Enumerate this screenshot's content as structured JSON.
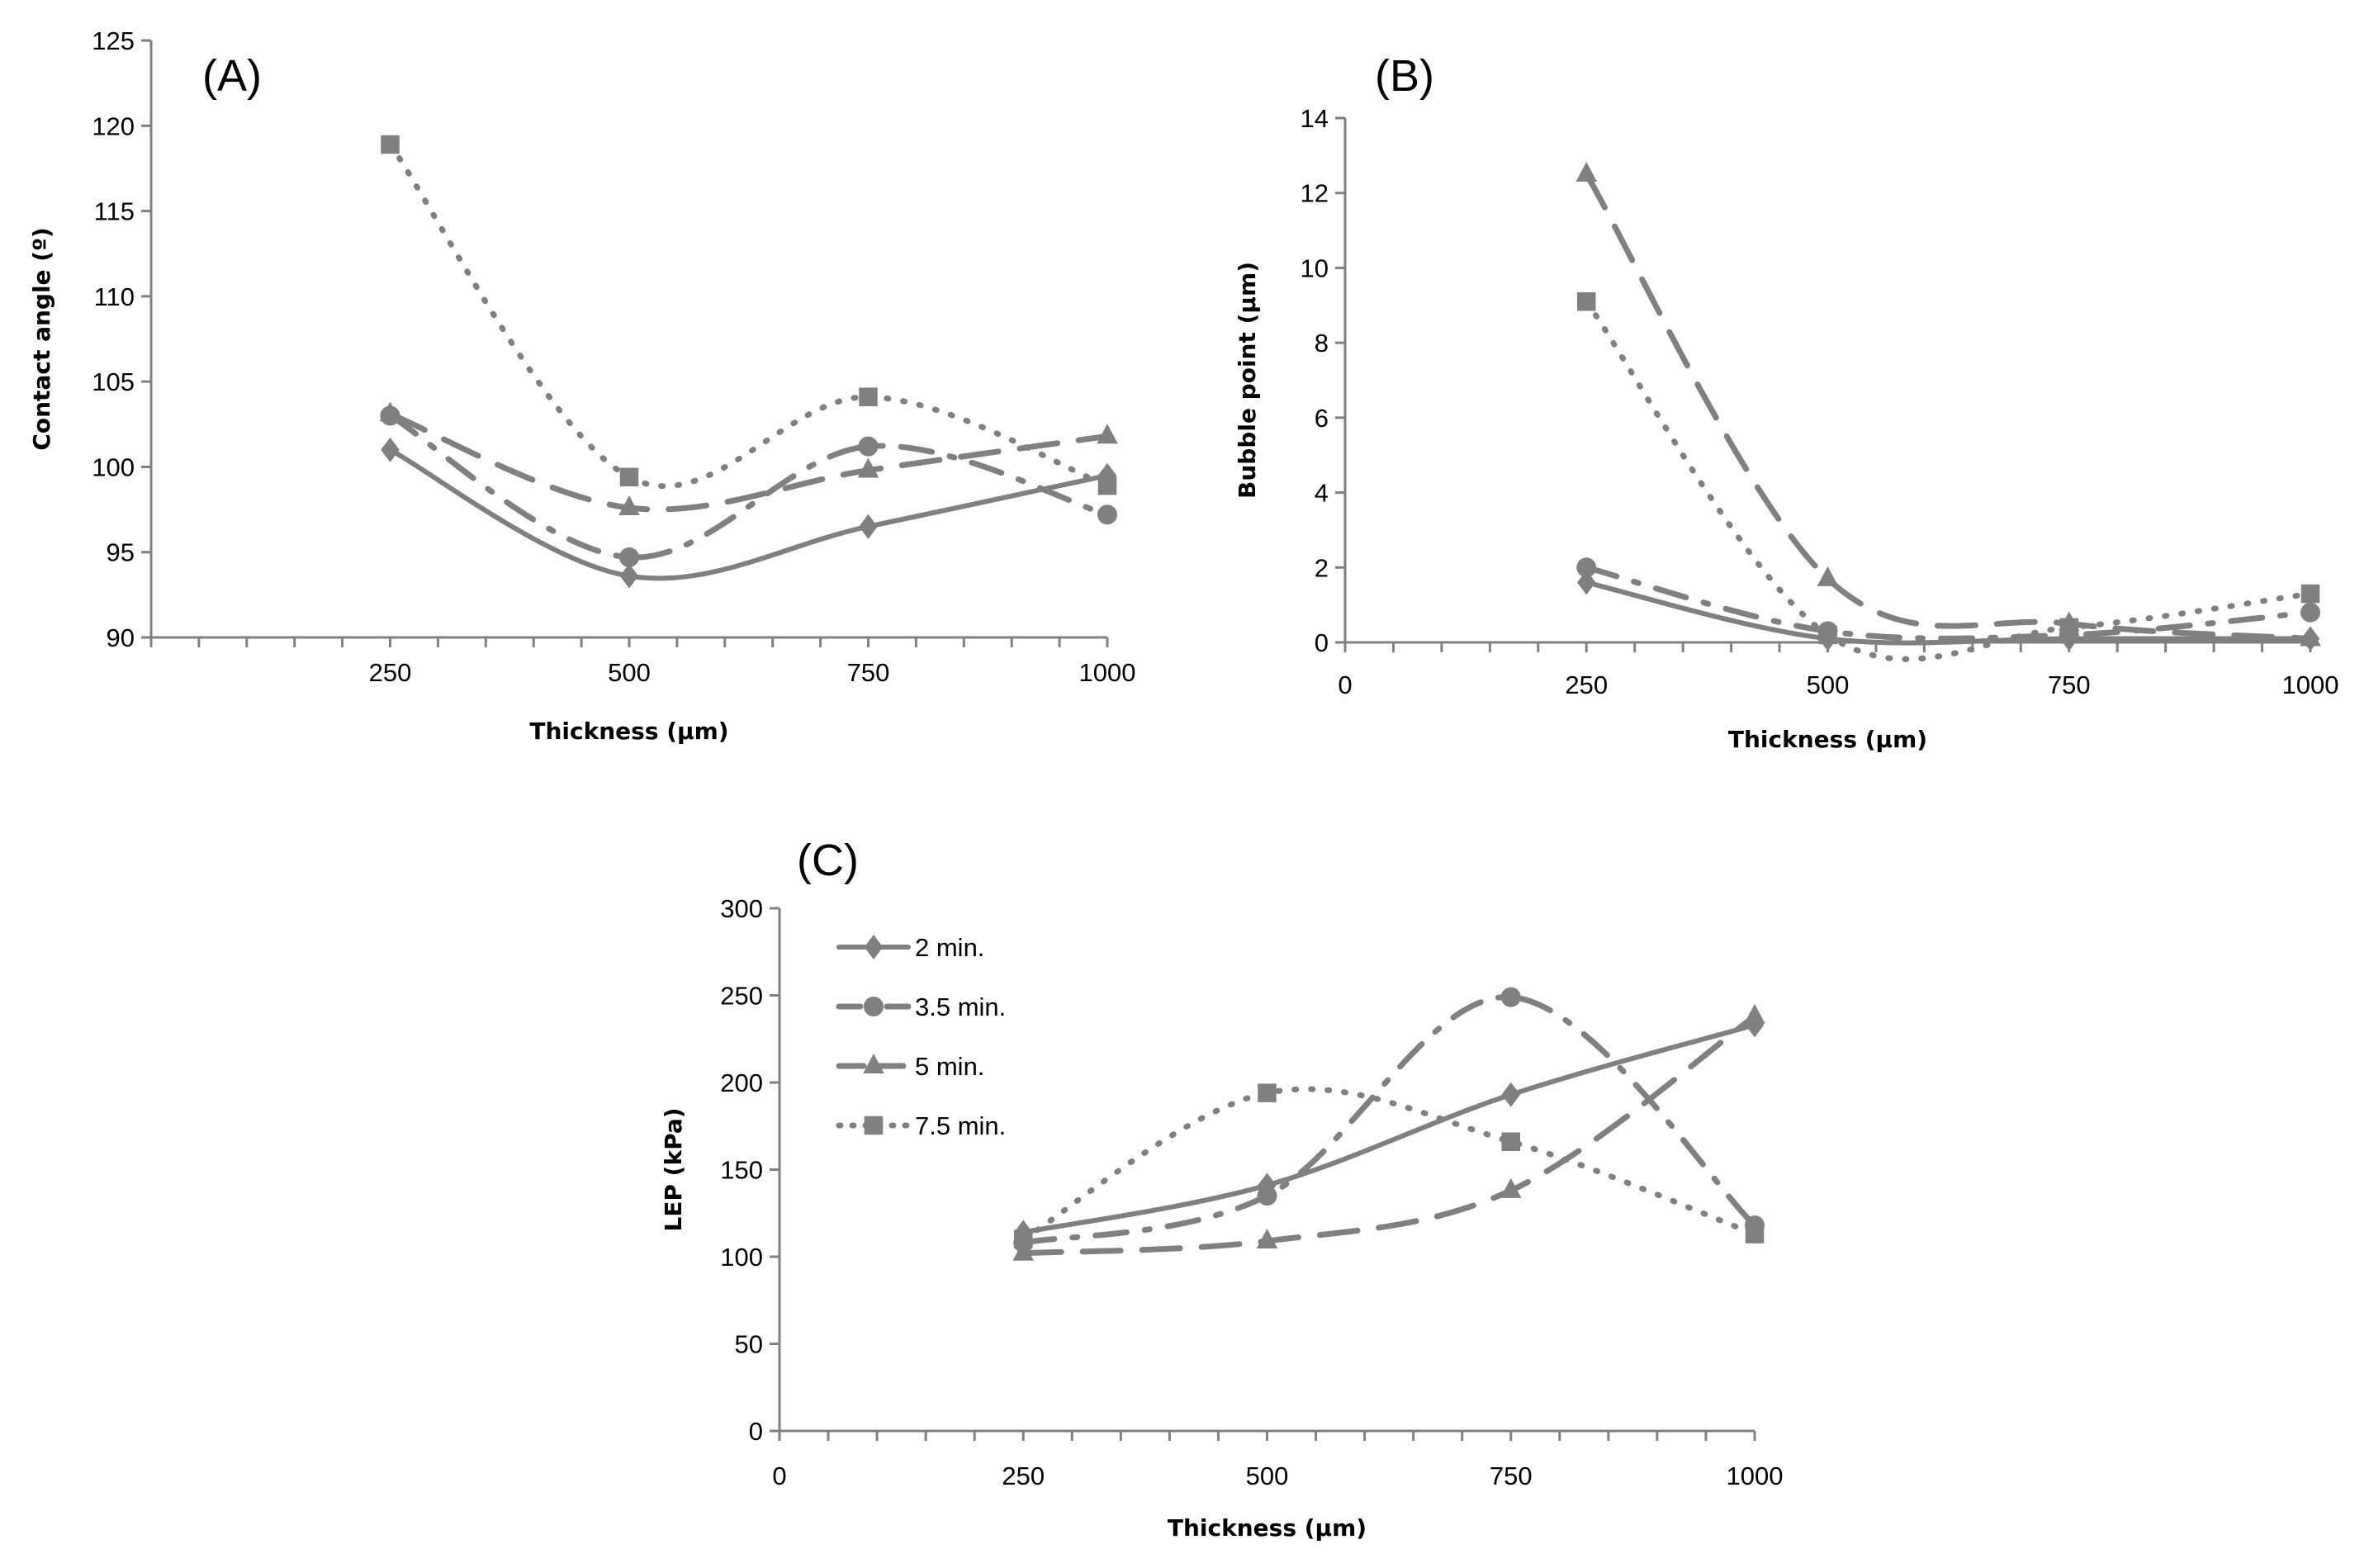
{
  "style": {
    "series_color": "#808080",
    "axis_color": "#808080",
    "text_color": "#000000"
  },
  "legend": {
    "placement": "top-left of panel C",
    "entries": [
      {
        "label": "2 min.",
        "marker": "diamond",
        "dash": "solid"
      },
      {
        "label": "3.5 min.",
        "marker": "circle",
        "dash": "dash-dot"
      },
      {
        "label": "5 min.",
        "marker": "triangle",
        "dash": "long-dash"
      },
      {
        "label": "7.5 min.",
        "marker": "square",
        "dash": "dotted"
      }
    ]
  },
  "chart_data": [
    {
      "type": "line",
      "panel_label": "(A)",
      "title": "",
      "xlabel": "Thickness (µm)",
      "ylabel": "Contact angle (º)",
      "xlim": [
        0,
        1000
      ],
      "ylim": [
        90,
        125
      ],
      "xticks": [
        250,
        500,
        750,
        1000
      ],
      "yticks": [
        90,
        95,
        100,
        105,
        110,
        115,
        120,
        125
      ],
      "grid": false,
      "x": [
        250,
        500,
        750,
        1000
      ],
      "series": [
        {
          "name": "2 min.",
          "values": [
            101.0,
            93.6,
            96.5,
            99.5
          ]
        },
        {
          "name": "3.5 min.",
          "values": [
            103.0,
            94.7,
            101.2,
            97.2
          ]
        },
        {
          "name": "5 min.",
          "values": [
            103.1,
            97.6,
            99.8,
            101.8
          ]
        },
        {
          "name": "7.5 min.",
          "values": [
            118.9,
            99.4,
            104.1,
            98.9
          ]
        }
      ]
    },
    {
      "type": "line",
      "panel_label": "(B)",
      "title": "",
      "xlabel": "Thickness (µm)",
      "ylabel": "Bubble point (µm)",
      "xlim": [
        0,
        1000
      ],
      "ylim": [
        0,
        14
      ],
      "xticks": [
        0,
        250,
        500,
        750,
        1000
      ],
      "yticks": [
        0,
        2,
        4,
        6,
        8,
        10,
        12,
        14
      ],
      "grid": false,
      "x": [
        250,
        500,
        750,
        1000
      ],
      "series": [
        {
          "name": "2 min.",
          "values": [
            1.6,
            0.1,
            0.1,
            0.1
          ]
        },
        {
          "name": "3.5 min.",
          "values": [
            2.0,
            0.3,
            0.2,
            0.8
          ]
        },
        {
          "name": "5 min.",
          "values": [
            12.5,
            1.7,
            0.5,
            0.1
          ]
        },
        {
          "name": "7.5 min.",
          "values": [
            9.1,
            0.2,
            0.4,
            1.3
          ]
        }
      ]
    },
    {
      "type": "line",
      "panel_label": "(C)",
      "title": "",
      "xlabel": "Thickness (µm)",
      "ylabel": "LEP (kPa)",
      "xlim": [
        0,
        1000
      ],
      "ylim": [
        0,
        300
      ],
      "xticks": [
        0,
        250,
        500,
        750,
        1000
      ],
      "yticks": [
        0,
        50,
        100,
        150,
        200,
        250,
        300
      ],
      "grid": false,
      "x": [
        250,
        500,
        750,
        1000
      ],
      "series": [
        {
          "name": "2 min.",
          "values": [
            114,
            141,
            193,
            233
          ]
        },
        {
          "name": "3.5 min.",
          "values": [
            108,
            135,
            249,
            118
          ]
        },
        {
          "name": "5 min.",
          "values": [
            102,
            109,
            138,
            238
          ]
        },
        {
          "name": "7.5 min.",
          "values": [
            110,
            194,
            166,
            113
          ]
        }
      ]
    }
  ]
}
